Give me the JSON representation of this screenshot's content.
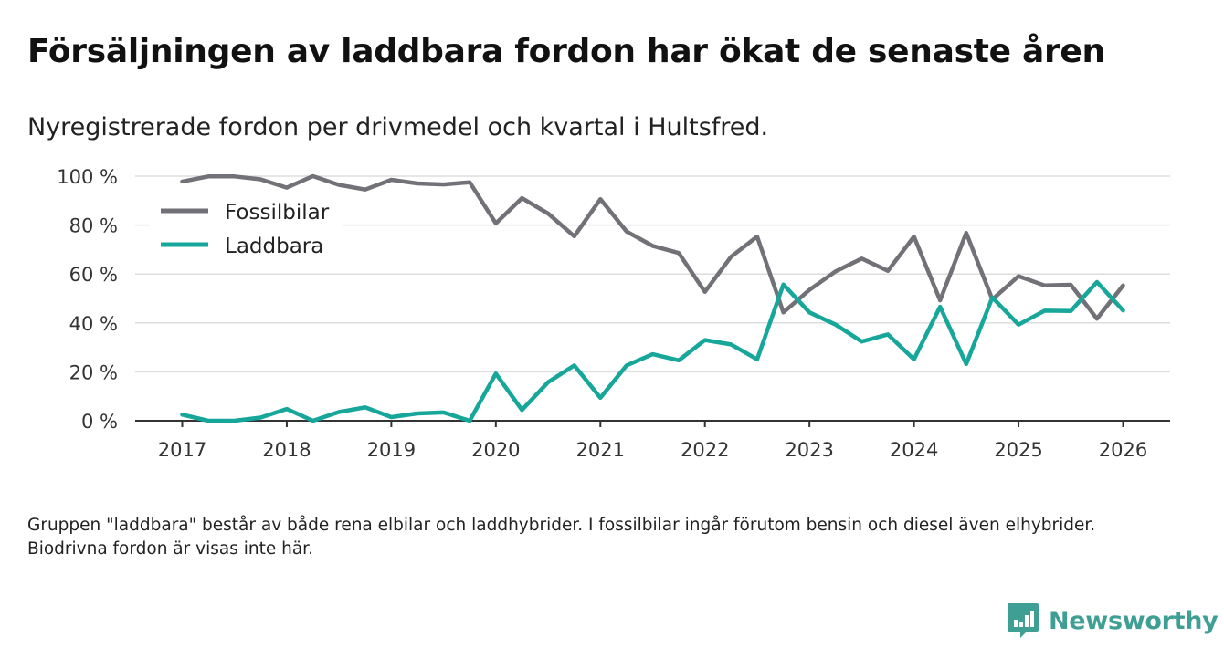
{
  "title": "Försäljningen av laddbara fordon har ökat de senaste åren",
  "subtitle": "Nyregistrerade fordon per drivmedel och kvartal i Hultsfred.",
  "footnote": "Gruppen \"laddbara\" består av både rena elbilar och laddhybrider. I fossilbilar ingår förutom bensin och diesel även elhybrider. Biodrivna fordon är visas inte här.",
  "brand": {
    "name": "Newsworthy"
  },
  "colors": {
    "fossil": "#727178",
    "laddbara": "#16a69a",
    "grid": "#dddddd",
    "axis": "#333333",
    "brand": "#3f9f95"
  },
  "chart_data": {
    "type": "line",
    "title": "Försäljningen av laddbara fordon har ökat de senaste åren",
    "xlabel": "",
    "ylabel": "",
    "xlim": [
      2016.55,
      2026.45
    ],
    "ylim": [
      0,
      100
    ],
    "yticks": [
      0,
      20,
      40,
      60,
      80,
      100
    ],
    "ytick_labels": [
      "0 %",
      "20 %",
      "40 %",
      "60 %",
      "80 %",
      "100 %"
    ],
    "xticks": [
      2017,
      2018,
      2019,
      2020,
      2021,
      2022,
      2023,
      2024,
      2025,
      2026
    ],
    "xtick_labels": [
      "2017",
      "2018",
      "2019",
      "2020",
      "2021",
      "2022",
      "2023",
      "2024",
      "2025",
      "2026"
    ],
    "legend_position": "top-left",
    "x": [
      2017,
      2017.25,
      2017.5,
      2017.75,
      2018,
      2018.25,
      2018.5,
      2018.75,
      2019,
      2019.25,
      2019.5,
      2019.75,
      2020,
      2020.25,
      2020.5,
      2020.75,
      2021,
      2021.25,
      2021.5,
      2021.75,
      2022,
      2022.25,
      2022.5,
      2022.75,
      2023,
      2023.25,
      2023.5,
      2023.75,
      2024,
      2024.25,
      2024.5,
      2024.75,
      2025,
      2025.25,
      2025.5,
      2025.75,
      2026
    ],
    "series": [
      {
        "name": "Fossilbilar",
        "color": "#727178",
        "values": [
          97.8,
          99.9,
          99.9,
          98.7,
          95.3,
          100,
          96.4,
          94.5,
          98.5,
          97,
          96.6,
          97.5,
          80.7,
          91,
          84.7,
          75.4,
          90.6,
          77.4,
          71.5,
          68.6,
          52.7,
          67,
          75.3,
          44.3,
          53.5,
          61.1,
          66.3,
          61.3,
          75.3,
          49.2,
          76.8,
          49.6,
          59.1,
          55.3,
          55.6,
          41.7,
          55.3
        ]
      },
      {
        "name": "Laddbara",
        "color": "#16a69a",
        "values": [
          2.5,
          0,
          0,
          1.3,
          4.8,
          0,
          3.6,
          5.5,
          1.5,
          3,
          3.4,
          0,
          19.3,
          4.4,
          15.8,
          22.6,
          9.4,
          22.6,
          27.2,
          24.7,
          33,
          31.2,
          25.1,
          55.7,
          44.3,
          39.3,
          32.4,
          35.3,
          25.1,
          46.6,
          23.2,
          50.4,
          39.3,
          45,
          44.9,
          56.7,
          45.1
        ]
      }
    ]
  }
}
